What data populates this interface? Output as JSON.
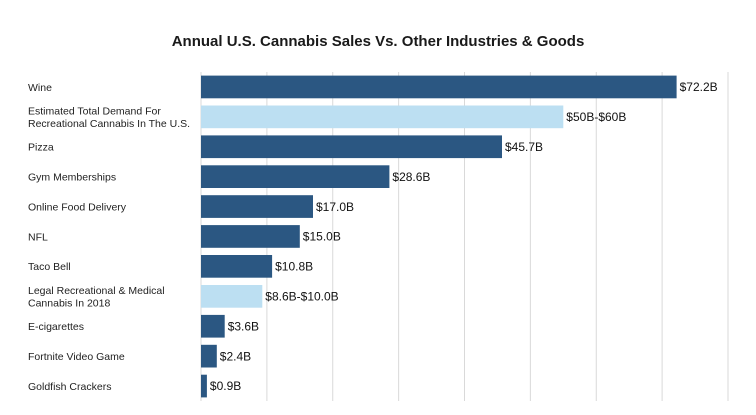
{
  "chart_data": {
    "type": "bar",
    "orientation": "horizontal",
    "title": "Annual U.S. Cannabis Sales Vs. Other Industries & Goods",
    "xlabel": "",
    "ylabel": "",
    "unit": "billion USD",
    "xlim": [
      0,
      80
    ],
    "grid": true,
    "legend": "none",
    "colors": {
      "dark": "#2b5782",
      "light": "#bcdff2"
    },
    "bars": [
      {
        "label_lines": [
          "Wine"
        ],
        "value": 72.2,
        "value_label": "$72.2B",
        "style": "dark"
      },
      {
        "label_lines": [
          "Estimated Total Demand For",
          "Recreational Cannabis In The U.S."
        ],
        "value": 55,
        "range": [
          50,
          60
        ],
        "value_label": "$50B-$60B",
        "style": "light"
      },
      {
        "label_lines": [
          "Pizza"
        ],
        "value": 45.7,
        "value_label": "$45.7B",
        "style": "dark"
      },
      {
        "label_lines": [
          "Gym Memberships"
        ],
        "value": 28.6,
        "value_label": "$28.6B",
        "style": "dark"
      },
      {
        "label_lines": [
          "Online Food Delivery"
        ],
        "value": 17.0,
        "value_label": "$17.0B",
        "style": "dark"
      },
      {
        "label_lines": [
          "NFL"
        ],
        "value": 15.0,
        "value_label": "$15.0B",
        "style": "dark"
      },
      {
        "label_lines": [
          "Taco Bell"
        ],
        "value": 10.8,
        "value_label": "$10.8B",
        "style": "dark"
      },
      {
        "label_lines": [
          "Legal Recreational & Medical",
          "Cannabis In 2018"
        ],
        "value": 9.3,
        "range": [
          8.6,
          10.0
        ],
        "value_label": "$8.6B-$10.0B",
        "style": "light"
      },
      {
        "label_lines": [
          "E-cigarettes"
        ],
        "value": 3.6,
        "value_label": "$3.6B",
        "style": "dark"
      },
      {
        "label_lines": [
          "Fortnite Video Game"
        ],
        "value": 2.4,
        "value_label": "$2.4B",
        "style": "dark"
      },
      {
        "label_lines": [
          "Goldfish Crackers"
        ],
        "value": 0.9,
        "value_label": "$0.9B",
        "style": "dark"
      }
    ]
  }
}
